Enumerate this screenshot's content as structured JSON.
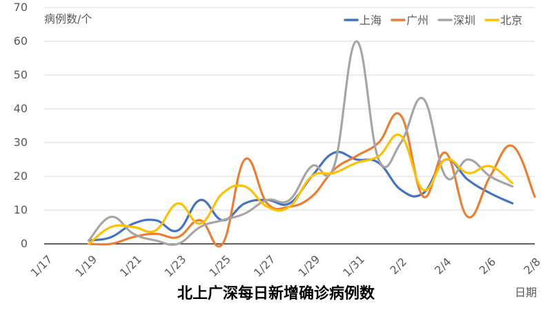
{
  "chart_data": {
    "type": "line",
    "title": "北上广深每日新增确诊病例数",
    "ylabel": "病例数/个",
    "xlabel": "日期",
    "ylim": [
      0,
      70
    ],
    "yticks": [
      0,
      10,
      20,
      30,
      40,
      50,
      60,
      70
    ],
    "x_categories": [
      "1/17",
      "1/18",
      "1/19",
      "1/20",
      "1/21",
      "1/22",
      "1/23",
      "1/24",
      "1/25",
      "1/26",
      "1/27",
      "1/28",
      "1/29",
      "1/30",
      "1/31",
      "2/1",
      "2/2",
      "2/3",
      "2/4",
      "2/5",
      "2/6",
      "2/7",
      "2/8"
    ],
    "x_tick_labels": [
      "1/17",
      "1/19",
      "1/21",
      "1/23",
      "1/25",
      "1/27",
      "1/29",
      "1/31",
      "2/2",
      "2/4",
      "2/6",
      "2/8"
    ],
    "grid": true,
    "legend_position": "top-right",
    "series": [
      {
        "name": "上海",
        "color": "#4472C4",
        "start": "1/19",
        "values": [
          1,
          2,
          6,
          7,
          4,
          13,
          7,
          12,
          13,
          12,
          20,
          27,
          25,
          24,
          16,
          15,
          25,
          19,
          15,
          12
        ]
      },
      {
        "name": "广州",
        "color": "#ED7D31",
        "start": "1/19",
        "values": [
          0,
          0,
          2,
          3,
          2,
          7,
          0,
          25,
          12,
          11,
          14,
          22,
          26,
          30,
          38,
          14,
          27,
          8,
          20,
          29,
          14
        ]
      },
      {
        "name": "深圳",
        "color": "#A5A5A5",
        "start": "1/19",
        "values": [
          1,
          8,
          3,
          1,
          0,
          5,
          7,
          9,
          13,
          13,
          23,
          23,
          60,
          25,
          30,
          43,
          20,
          25,
          20,
          17
        ]
      },
      {
        "name": "北京",
        "color": "#FFC000",
        "start": "1/19",
        "values": [
          0,
          5,
          5,
          4,
          12,
          6,
          15,
          17,
          11,
          11,
          20,
          21,
          24,
          26,
          32,
          16,
          25,
          21,
          23,
          18
        ]
      }
    ]
  }
}
